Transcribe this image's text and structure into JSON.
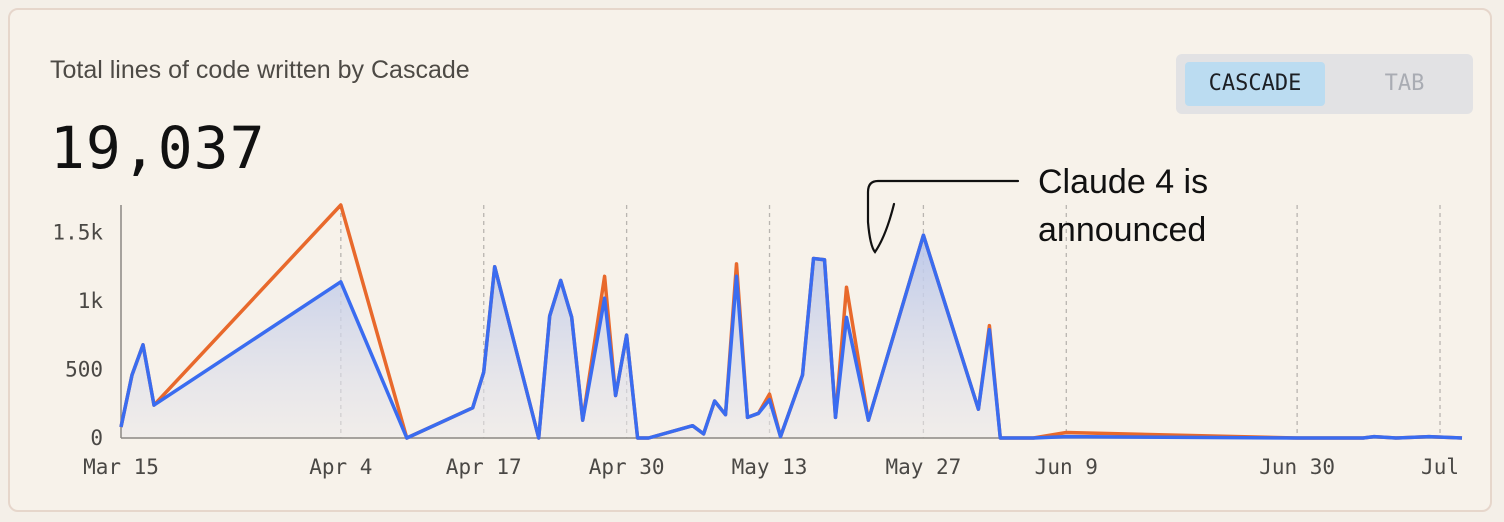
{
  "header": {
    "title": "Total lines of code written by Cascade",
    "total": "19,037"
  },
  "toggle": {
    "options": [
      {
        "label": "CASCADE",
        "active": true
      },
      {
        "label": "TAB",
        "active": false
      }
    ]
  },
  "colors": {
    "orange_series": "#e8692c",
    "blue_series": "#3a6cf0",
    "area_fill": "#c5cfe9",
    "axis": "#8c8883",
    "grid": "#b9b5b0"
  },
  "chart_data": {
    "type": "area",
    "xlabel": "",
    "ylabel": "",
    "ylim": [
      0,
      1700
    ],
    "y_ticks": [
      {
        "value": 0,
        "label": "0"
      },
      {
        "value": 500,
        "label": "500"
      },
      {
        "value": 1000,
        "label": "1k"
      },
      {
        "value": 1500,
        "label": "1.5k"
      }
    ],
    "x_ticks": [
      {
        "date": "2025-03-15",
        "label": "Mar 15",
        "grid": false
      },
      {
        "date": "2025-04-04",
        "label": "Apr 4",
        "grid": true
      },
      {
        "date": "2025-04-17",
        "label": "Apr 17",
        "grid": true
      },
      {
        "date": "2025-04-30",
        "label": "Apr 30",
        "grid": true
      },
      {
        "date": "2025-05-13",
        "label": "May 13",
        "grid": true
      },
      {
        "date": "2025-05-27",
        "label": "May 27",
        "grid": true
      },
      {
        "date": "2025-06-09",
        "label": "Jun 9",
        "grid": true
      },
      {
        "date": "2025-06-30",
        "label": "Jun 30",
        "grid": true
      },
      {
        "date": "2025-07-13",
        "label": "Jul",
        "grid": true
      }
    ],
    "grid": "vertical dashed",
    "annotation": {
      "text_lines": [
        "Claude 4 is",
        "announced"
      ],
      "date": "2025-05-22"
    },
    "series": [
      {
        "color": "orange",
        "points": [
          [
            "2025-03-15",
            80
          ],
          [
            "2025-03-16",
            460
          ],
          [
            "2025-03-17",
            680
          ],
          [
            "2025-03-18",
            240
          ],
          [
            "2025-04-04",
            1700
          ],
          [
            "2025-04-10",
            0
          ],
          [
            "2025-04-16",
            220
          ],
          [
            "2025-04-17",
            480
          ],
          [
            "2025-04-18",
            1250
          ],
          [
            "2025-04-22",
            0
          ],
          [
            "2025-04-23",
            890
          ],
          [
            "2025-04-24",
            1150
          ],
          [
            "2025-04-25",
            880
          ],
          [
            "2025-04-26",
            130
          ],
          [
            "2025-04-28",
            1180
          ],
          [
            "2025-04-29",
            310
          ],
          [
            "2025-04-30",
            750
          ],
          [
            "2025-05-01",
            0
          ],
          [
            "2025-05-02",
            0
          ],
          [
            "2025-05-06",
            90
          ],
          [
            "2025-05-07",
            30
          ],
          [
            "2025-05-08",
            270
          ],
          [
            "2025-05-09",
            170
          ],
          [
            "2025-05-10",
            1270
          ],
          [
            "2025-05-11",
            150
          ],
          [
            "2025-05-12",
            180
          ],
          [
            "2025-05-13",
            320
          ],
          [
            "2025-05-14",
            10
          ],
          [
            "2025-05-16",
            460
          ],
          [
            "2025-05-17",
            1310
          ],
          [
            "2025-05-18",
            1300
          ],
          [
            "2025-05-19",
            150
          ],
          [
            "2025-05-20",
            1100
          ],
          [
            "2025-05-22",
            130
          ],
          [
            "2025-05-27",
            1480
          ],
          [
            "2025-06-01",
            210
          ],
          [
            "2025-06-02",
            820
          ],
          [
            "2025-06-03",
            0
          ],
          [
            "2025-06-06",
            0
          ],
          [
            "2025-06-09",
            40
          ],
          [
            "2025-06-30",
            0
          ],
          [
            "2025-07-06",
            0
          ],
          [
            "2025-07-07",
            10
          ],
          [
            "2025-07-09",
            0
          ],
          [
            "2025-07-12",
            10
          ],
          [
            "2025-07-15",
            0
          ]
        ]
      },
      {
        "color": "blue",
        "points": [
          [
            "2025-03-15",
            80
          ],
          [
            "2025-03-16",
            460
          ],
          [
            "2025-03-17",
            680
          ],
          [
            "2025-03-18",
            240
          ],
          [
            "2025-04-04",
            1140
          ],
          [
            "2025-04-10",
            0
          ],
          [
            "2025-04-16",
            220
          ],
          [
            "2025-04-17",
            480
          ],
          [
            "2025-04-18",
            1250
          ],
          [
            "2025-04-22",
            0
          ],
          [
            "2025-04-23",
            890
          ],
          [
            "2025-04-24",
            1150
          ],
          [
            "2025-04-25",
            880
          ],
          [
            "2025-04-26",
            130
          ],
          [
            "2025-04-28",
            1020
          ],
          [
            "2025-04-29",
            310
          ],
          [
            "2025-04-30",
            750
          ],
          [
            "2025-05-01",
            0
          ],
          [
            "2025-05-02",
            0
          ],
          [
            "2025-05-06",
            90
          ],
          [
            "2025-05-07",
            30
          ],
          [
            "2025-05-08",
            270
          ],
          [
            "2025-05-09",
            170
          ],
          [
            "2025-05-10",
            1180
          ],
          [
            "2025-05-11",
            150
          ],
          [
            "2025-05-12",
            180
          ],
          [
            "2025-05-13",
            280
          ],
          [
            "2025-05-14",
            10
          ],
          [
            "2025-05-16",
            460
          ],
          [
            "2025-05-17",
            1310
          ],
          [
            "2025-05-18",
            1300
          ],
          [
            "2025-05-19",
            150
          ],
          [
            "2025-05-20",
            880
          ],
          [
            "2025-05-22",
            130
          ],
          [
            "2025-05-27",
            1480
          ],
          [
            "2025-06-01",
            210
          ],
          [
            "2025-06-02",
            790
          ],
          [
            "2025-06-03",
            0
          ],
          [
            "2025-06-06",
            0
          ],
          [
            "2025-06-09",
            10
          ],
          [
            "2025-06-30",
            0
          ],
          [
            "2025-07-06",
            0
          ],
          [
            "2025-07-07",
            10
          ],
          [
            "2025-07-09",
            0
          ],
          [
            "2025-07-12",
            10
          ],
          [
            "2025-07-15",
            0
          ]
        ]
      }
    ]
  }
}
